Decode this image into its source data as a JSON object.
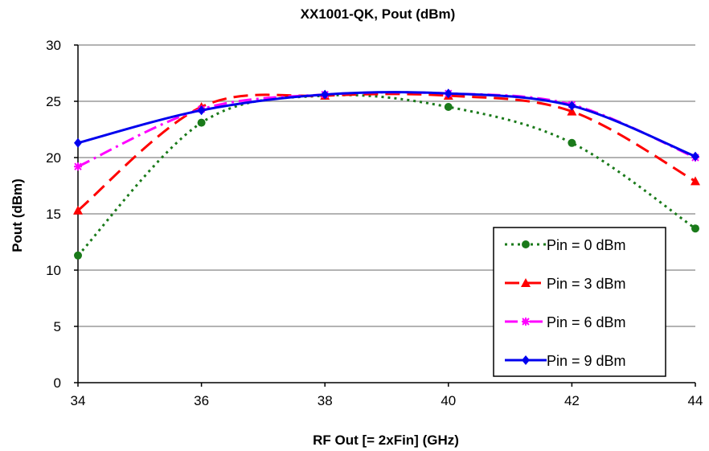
{
  "chart_data": {
    "type": "line",
    "title": "XX1001-QK, Pout (dBm)",
    "xlabel": "RF Out [= 2xFin] (GHz)",
    "ylabel": "Pout (dBm)",
    "xlim": [
      34,
      44
    ],
    "ylim": [
      0,
      30
    ],
    "xticks": [
      "34",
      "36",
      "38",
      "40",
      "42",
      "44"
    ],
    "yticks": [
      "0",
      "5",
      "10",
      "15",
      "20",
      "25",
      "30"
    ],
    "grid": "horizontal",
    "legend_position": "bottom-right",
    "series": [
      {
        "name": "Pin = 0 dBm",
        "color": "#1a7a1a",
        "dash": "dotted",
        "marker": "circle",
        "x": [
          34,
          36,
          38,
          40,
          42,
          44
        ],
        "y": [
          11.3,
          23.1,
          25.5,
          24.5,
          21.3,
          13.7
        ]
      },
      {
        "name": "Pin = 3 dBm",
        "color": "#ff0000",
        "dash": "long-dash",
        "marker": "triangle",
        "x": [
          34,
          36,
          38,
          40,
          42,
          44
        ],
        "y": [
          15.3,
          24.5,
          25.5,
          25.5,
          24.1,
          17.9
        ]
      },
      {
        "name": "Pin = 6 dBm",
        "color": "#ff00ff",
        "dash": "dash-dot",
        "marker": "asterisk",
        "x": [
          34,
          36,
          38,
          40,
          42,
          44
        ],
        "y": [
          19.2,
          24.3,
          25.6,
          25.7,
          24.7,
          20.0
        ]
      },
      {
        "name": "Pin = 9 dBm",
        "color": "#0000ee",
        "dash": "solid",
        "marker": "diamond",
        "x": [
          34,
          36,
          38,
          40,
          42,
          44
        ],
        "y": [
          21.3,
          24.2,
          25.6,
          25.7,
          24.6,
          20.1
        ]
      }
    ]
  }
}
